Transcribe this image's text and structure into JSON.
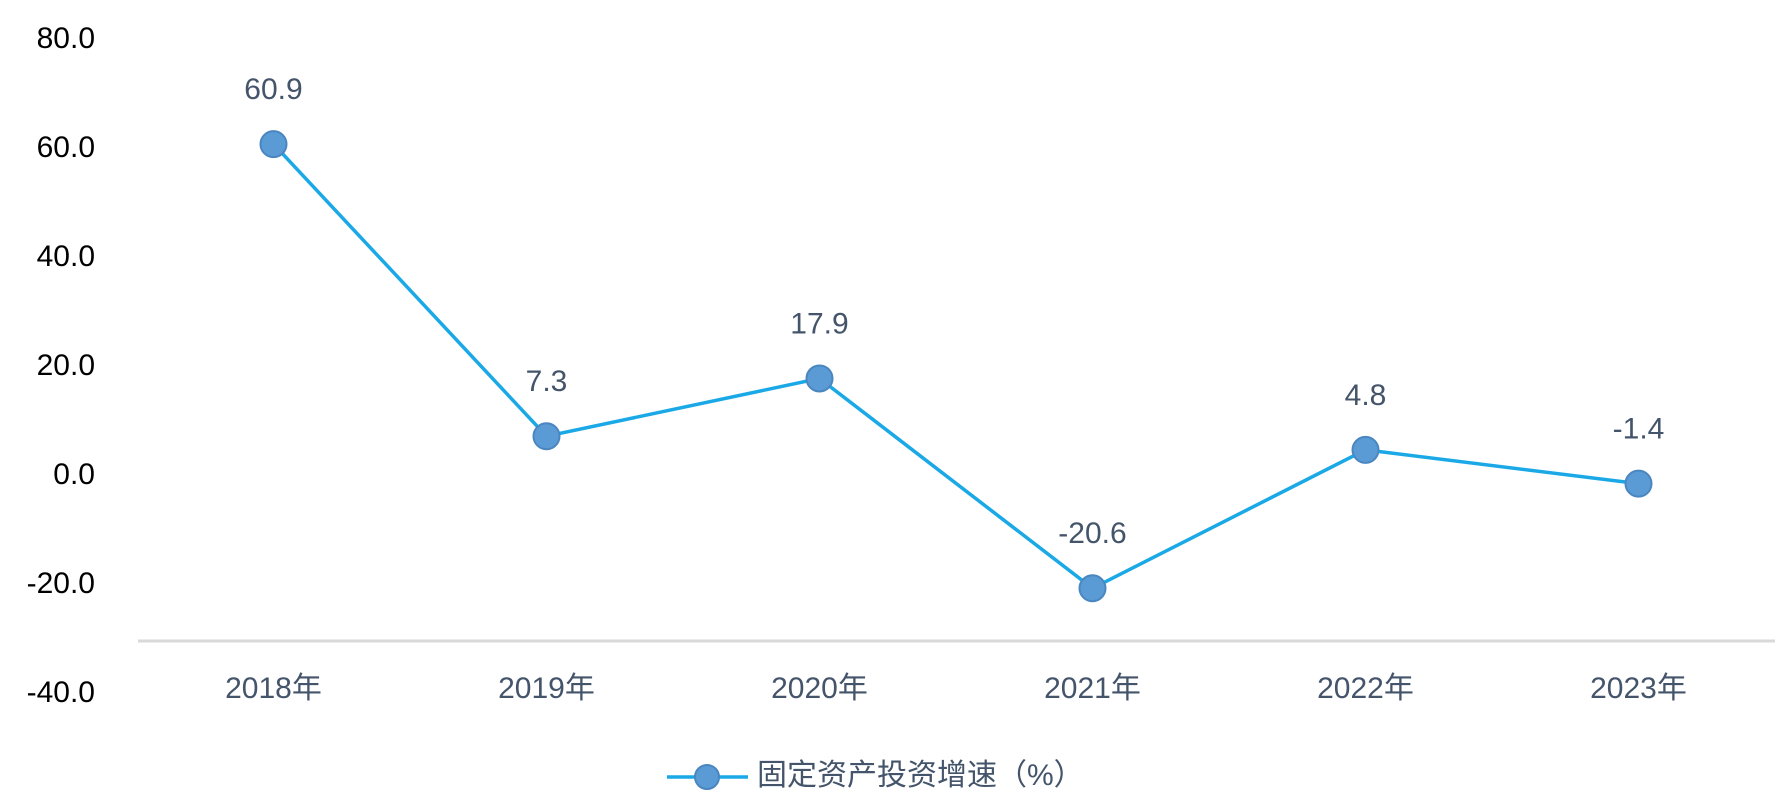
{
  "chart_data": {
    "type": "line",
    "categories": [
      "2018年",
      "2019年",
      "2020年",
      "2021年",
      "2022年",
      "2023年"
    ],
    "series": [
      {
        "name": "固定资产投资增速（%）",
        "color": "#1aa9e6",
        "marker_color": "#5b9bd5",
        "values": [
          60.9,
          7.3,
          17.9,
          -20.6,
          4.8,
          -1.4
        ]
      }
    ],
    "ylim": [
      -40,
      80
    ],
    "yticks": [
      {
        "value": 80,
        "label": "80.0"
      },
      {
        "value": 60,
        "label": "60.0"
      },
      {
        "value": 40,
        "label": "40.0"
      },
      {
        "value": 20,
        "label": "20.0"
      },
      {
        "value": 0,
        "label": "0.0"
      },
      {
        "value": -20,
        "label": "-20.0"
      },
      {
        "value": -40,
        "label": "-40.0"
      }
    ],
    "grid": false,
    "legend": "bottom"
  }
}
